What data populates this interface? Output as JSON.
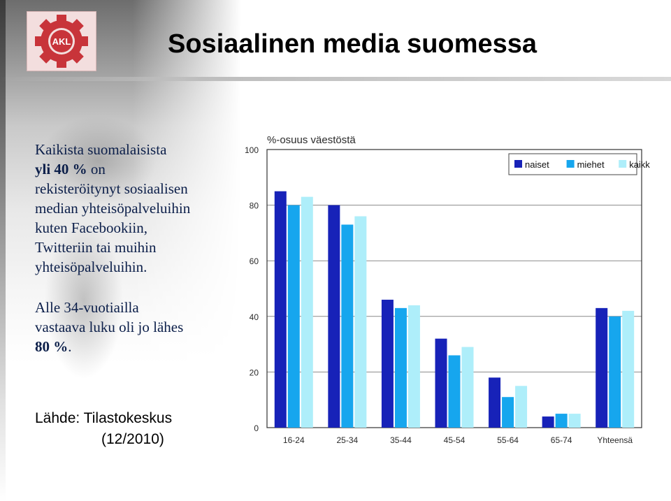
{
  "page": {
    "title": "Sosiaalinen media suomessa"
  },
  "logo": {
    "text": "AKL"
  },
  "text": {
    "line1": "Kaikista suomalaisista",
    "line2_bold": "yli 40 %",
    "line2_rest": " on",
    "line3": "rekisteröitynyt sosiaalisen",
    "line4": "median yhteisöpalveluihin",
    "line5": "kuten Facebookiin,",
    "line6": "Twitteriin tai muihin",
    "line7": "yhteisöpalveluihin.",
    "para2_line1": "Alle 34-vuotiailla",
    "para2_line2": "vastaava luku oli jo lähes",
    "para2_line3_bold": "80 %",
    "para2_line3_rest": "."
  },
  "source": {
    "label": "Lähde: Tilastokeskus",
    "date": "(12/2010)"
  },
  "colors": {
    "naiset": "#1722b8",
    "miehet": "#16a6ee",
    "kaikki": "#aeeefa",
    "text_blue": "#0c1f4a"
  },
  "chart_data": {
    "type": "bar",
    "title": "%-osuus väestöstä",
    "categories": [
      "16-24",
      "25-34",
      "35-44",
      "45-54",
      "55-64",
      "65-74",
      "Yhteensä"
    ],
    "series": [
      {
        "name": "naiset",
        "values": [
          85,
          80,
          46,
          32,
          18,
          4,
          43
        ]
      },
      {
        "name": "miehet",
        "values": [
          80,
          73,
          43,
          26,
          11,
          5,
          40
        ]
      },
      {
        "name": "kaikki",
        "values": [
          83,
          76,
          44,
          29,
          15,
          5,
          42
        ]
      }
    ],
    "yticks": [
      "0",
      "20",
      "40",
      "60",
      "80",
      "100"
    ],
    "ylim": [
      0,
      100
    ],
    "grid": true,
    "legend": "top-right"
  }
}
